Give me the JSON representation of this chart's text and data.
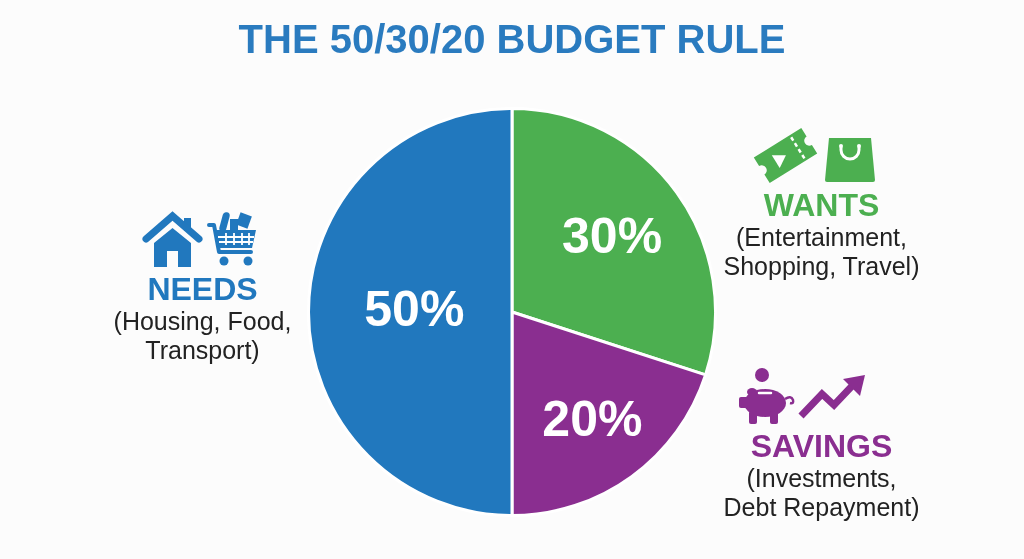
{
  "chart_data": {
    "type": "pie",
    "title": "THE 50/30/20 BUDGET RULE",
    "categories": [
      "WANTS",
      "SAVINGS",
      "NEEDS"
    ],
    "values": [
      30,
      20,
      50
    ],
    "colors": [
      "#4caf50",
      "#8a2e90",
      "#2178be"
    ],
    "value_labels": [
      "30%",
      "20%",
      "50%"
    ],
    "legend": "right",
    "annotations": [
      "(Entertainment, Shopping, Travel)",
      "(Investments, Debt Repayment)",
      "(Housing, Food, Transport)"
    ]
  }
}
